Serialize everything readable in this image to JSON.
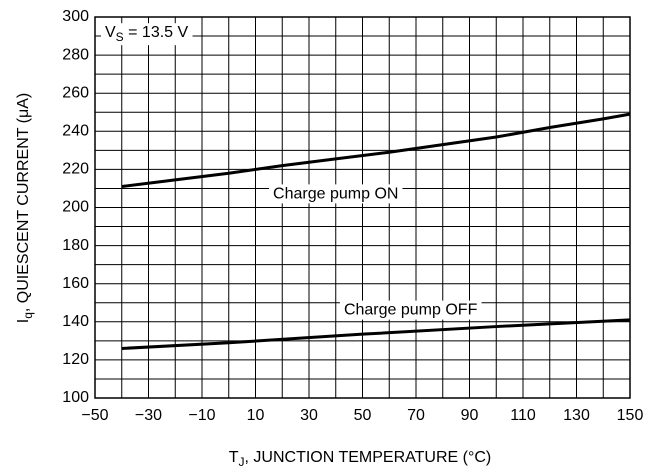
{
  "chart_data": {
    "type": "line",
    "x_label": {
      "main": "T",
      "sub": "J",
      "rest": ", JUNCTION TEMPERATURE (°C)"
    },
    "y_label": {
      "main": "I",
      "sub": "q",
      "rest": ", QUIESCENT CURRENT (μA)"
    },
    "series": [
      {
        "name": "Charge pump ON",
        "color": "#000000",
        "x": [
          -40,
          -20,
          0,
          20,
          40,
          60,
          80,
          100,
          120,
          140,
          150
        ],
        "values": [
          211,
          214.5,
          218,
          222,
          225.5,
          229,
          233,
          237,
          242,
          246.5,
          249
        ]
      },
      {
        "name": "Charge pump OFF",
        "color": "#000000",
        "x": [
          -40,
          0,
          50,
          100,
          150
        ],
        "values": [
          126,
          129,
          133.5,
          137.5,
          141
        ]
      }
    ],
    "series_label_positions": [
      [
        40,
        207
      ],
      [
        68,
        146
      ]
    ],
    "annotation": {
      "main": "V",
      "sub": "S",
      "rest": " = 13.5 V"
    },
    "xlim": [
      -50,
      150
    ],
    "ylim": [
      100,
      300
    ],
    "xticks": [
      {
        "value": -50,
        "label": "−50"
      },
      {
        "value": -30,
        "label": "−30"
      },
      {
        "value": -10,
        "label": "−10"
      },
      10,
      30,
      50,
      70,
      90,
      110,
      130,
      150
    ],
    "xminor": [
      -40,
      -20,
      0,
      20,
      40,
      60,
      80,
      100,
      120,
      140
    ],
    "yticks": [
      100,
      120,
      140,
      160,
      180,
      200,
      220,
      240,
      260,
      280,
      300
    ],
    "yminor": [
      110,
      130,
      150,
      170,
      190,
      210,
      230,
      250,
      270,
      290
    ],
    "grid": true
  }
}
